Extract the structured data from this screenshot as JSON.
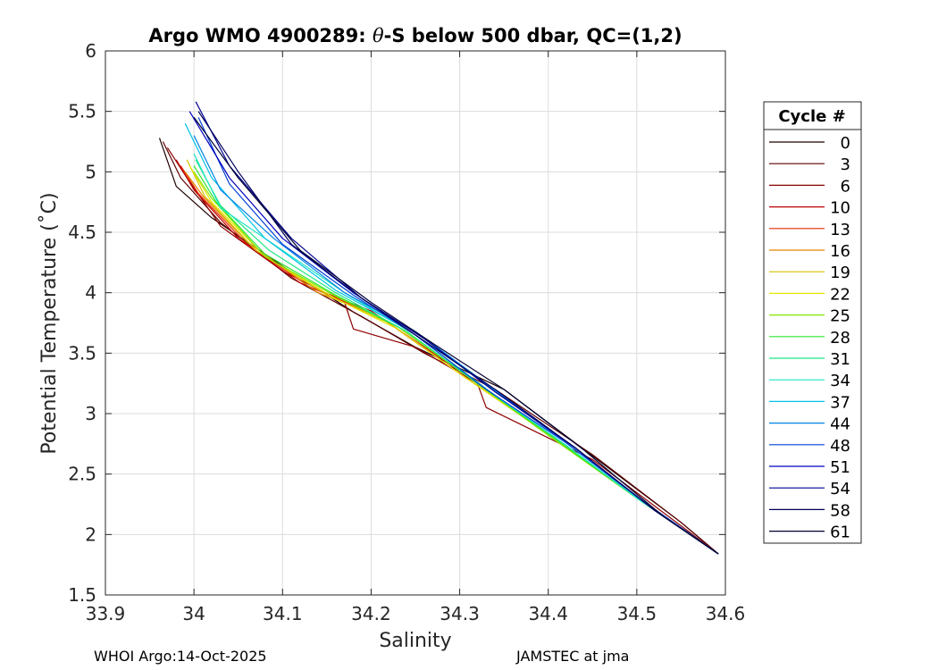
{
  "chart_data": {
    "type": "line",
    "title_prefix": "Argo WMO 4900289: ",
    "title_symbol": "θ",
    "title_suffix": "-S below 500 dbar,  QC=(1,2)",
    "xlabel": "Salinity",
    "ylabel": "Potential Temperature (˚C)",
    "xlim": [
      33.9,
      34.6
    ],
    "ylim": [
      1.5,
      6
    ],
    "xticks": [
      33.9,
      34,
      34.1,
      34.2,
      34.3,
      34.4,
      34.5,
      34.6
    ],
    "xtick_labels": [
      "33.9",
      "34",
      "34.1",
      "34.2",
      "34.3",
      "34.4",
      "34.5",
      "34.6"
    ],
    "yticks": [
      1.5,
      2,
      2.5,
      3,
      3.5,
      4,
      4.5,
      5,
      5.5,
      6
    ],
    "ytick_labels": [
      "1.5",
      "2",
      "2.5",
      "3",
      "3.5",
      "4",
      "4.5",
      "5",
      "5.5",
      "6"
    ],
    "grid": true,
    "legend_title": "Cycle #",
    "legend_position": "outside-right",
    "series": [
      {
        "name": "0",
        "color": "#1e0000",
        "x": [
          33.961,
          33.98,
          34.02,
          34.1,
          34.18,
          34.25,
          34.35,
          34.45,
          34.55,
          34.592
        ],
        "y": [
          5.28,
          4.88,
          4.62,
          4.22,
          3.84,
          3.55,
          3.2,
          2.65,
          2.1,
          1.84
        ]
      },
      {
        "name": "3",
        "color": "#5c0000",
        "x": [
          33.965,
          33.985,
          34.03,
          34.11,
          34.19,
          34.26,
          34.34,
          34.45,
          34.55,
          34.592
        ],
        "y": [
          5.25,
          4.95,
          4.58,
          4.12,
          3.8,
          3.5,
          3.2,
          2.66,
          2.1,
          1.84
        ]
      },
      {
        "name": "6",
        "color": "#8f0000",
        "x": [
          33.97,
          33.992,
          34.03,
          34.1,
          34.17,
          34.18,
          34.25,
          34.32,
          34.33,
          34.45,
          34.592
        ],
        "y": [
          5.2,
          4.95,
          4.55,
          4.18,
          3.92,
          3.7,
          3.55,
          3.25,
          3.05,
          2.62,
          1.84
        ]
      },
      {
        "name": "10",
        "color": "#bd0000",
        "x": [
          33.98,
          34.0,
          34.05,
          34.12,
          34.2,
          34.3,
          34.4,
          34.5,
          34.592
        ],
        "y": [
          5.1,
          4.85,
          4.45,
          4.08,
          3.85,
          3.35,
          2.83,
          2.31,
          1.84
        ]
      },
      {
        "name": "13",
        "color": "#e32a00",
        "x": [
          33.985,
          34.005,
          34.06,
          34.13,
          34.21,
          34.3,
          34.4,
          34.5,
          34.592
        ],
        "y": [
          5.05,
          4.82,
          4.4,
          4.05,
          3.8,
          3.33,
          2.83,
          2.31,
          1.84
        ]
      },
      {
        "name": "16",
        "color": "#e68500",
        "x": [
          33.99,
          34.01,
          34.06,
          34.14,
          34.21,
          34.3,
          34.4,
          34.5,
          34.592
        ],
        "y": [
          5.0,
          4.8,
          4.42,
          4.0,
          3.8,
          3.33,
          2.83,
          2.31,
          1.84
        ]
      },
      {
        "name": "19",
        "color": "#d6c200",
        "x": [
          33.992,
          34.012,
          34.07,
          34.15,
          34.22,
          34.3,
          34.4,
          34.5,
          34.592
        ],
        "y": [
          5.1,
          4.8,
          4.35,
          3.98,
          3.75,
          3.33,
          2.83,
          2.31,
          1.84
        ]
      },
      {
        "name": "22",
        "color": "#e6e600",
        "x": [
          33.995,
          34.02,
          34.08,
          34.16,
          34.23,
          34.3,
          34.4,
          34.5,
          34.592
        ],
        "y": [
          5.05,
          4.75,
          4.3,
          3.95,
          3.7,
          3.33,
          2.83,
          2.3,
          1.84
        ]
      },
      {
        "name": "25",
        "color": "#85e600",
        "x": [
          34.0,
          34.02,
          34.08,
          34.16,
          34.23,
          34.31,
          34.4,
          34.5,
          34.592
        ],
        "y": [
          5.0,
          4.78,
          4.3,
          3.97,
          3.72,
          3.3,
          2.82,
          2.3,
          1.84
        ]
      },
      {
        "name": "28",
        "color": "#2ee62e",
        "x": [
          34.0,
          34.025,
          34.08,
          34.16,
          34.24,
          34.32,
          34.41,
          34.5,
          34.592
        ],
        "y": [
          5.05,
          4.75,
          4.32,
          3.98,
          3.68,
          3.25,
          2.78,
          2.3,
          1.84
        ]
      },
      {
        "name": "31",
        "color": "#1fe685",
        "x": [
          34.002,
          34.03,
          34.085,
          34.16,
          34.24,
          34.33,
          34.42,
          34.5,
          34.592
        ],
        "y": [
          5.1,
          4.72,
          4.35,
          4.0,
          3.68,
          3.2,
          2.74,
          2.3,
          1.84
        ]
      },
      {
        "name": "34",
        "color": "#1ee6c2",
        "x": [
          34.0,
          34.03,
          34.09,
          34.17,
          34.25,
          34.34,
          34.42,
          34.5,
          34.592
        ],
        "y": [
          5.15,
          4.7,
          4.4,
          4.0,
          3.65,
          3.15,
          2.74,
          2.3,
          1.84
        ]
      },
      {
        "name": "37",
        "color": "#00c2e6",
        "x": [
          33.99,
          34.02,
          34.08,
          34.16,
          34.24,
          34.32,
          34.42,
          34.5,
          34.592
        ],
        "y": [
          5.4,
          4.95,
          4.45,
          4.02,
          3.7,
          3.3,
          2.76,
          2.31,
          1.84
        ]
      },
      {
        "name": "44",
        "color": "#0085e6",
        "x": [
          34.0,
          34.03,
          34.09,
          34.17,
          34.25,
          34.33,
          34.42,
          34.51,
          34.592
        ],
        "y": [
          5.3,
          4.85,
          4.45,
          4.0,
          3.68,
          3.25,
          2.76,
          2.26,
          1.84
        ]
      },
      {
        "name": "48",
        "color": "#0042d6",
        "x": [
          34.005,
          34.04,
          34.1,
          34.18,
          34.25,
          34.33,
          34.42,
          34.51,
          34.592
        ],
        "y": [
          5.45,
          4.9,
          4.4,
          3.98,
          3.65,
          3.2,
          2.76,
          2.26,
          1.84
        ]
      },
      {
        "name": "51",
        "color": "#0000bd",
        "x": [
          33.995,
          34.04,
          34.1,
          34.18,
          34.26,
          34.34,
          34.43,
          34.52,
          34.592
        ],
        "y": [
          5.5,
          4.95,
          4.45,
          4.0,
          3.62,
          3.18,
          2.72,
          2.2,
          1.84
        ]
      },
      {
        "name": "54",
        "color": "#00008f",
        "x": [
          34.002,
          34.04,
          34.11,
          34.19,
          34.26,
          34.34,
          34.43,
          34.52,
          34.592
        ],
        "y": [
          5.58,
          5.05,
          4.45,
          3.95,
          3.62,
          3.18,
          2.72,
          2.2,
          1.84
        ]
      },
      {
        "name": "58",
        "color": "#00005c",
        "x": [
          34.005,
          34.05,
          34.11,
          34.19,
          34.26,
          34.34,
          34.43,
          34.52,
          34.592
        ],
        "y": [
          5.5,
          5.0,
          4.4,
          3.95,
          3.6,
          3.2,
          2.72,
          2.2,
          1.84
        ]
      },
      {
        "name": "61",
        "color": "#000033",
        "x": [
          34.0,
          34.05,
          34.12,
          34.2,
          34.27,
          34.35,
          34.44,
          34.53,
          34.592
        ],
        "y": [
          5.45,
          4.95,
          4.35,
          3.92,
          3.58,
          3.2,
          2.7,
          2.15,
          1.84
        ]
      }
    ]
  },
  "footer": {
    "left": "WHOI Argo:14-Oct-2025",
    "right": "JAMSTEC at jma"
  }
}
